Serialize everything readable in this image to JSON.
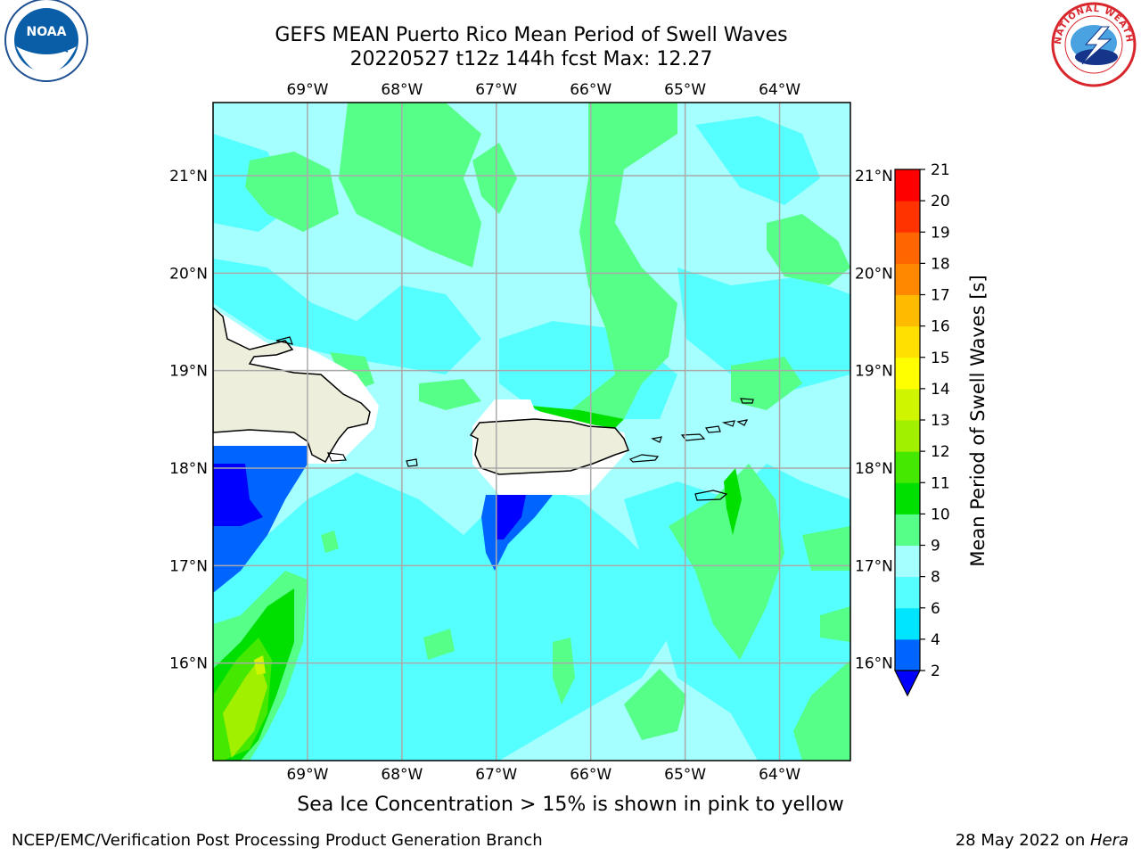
{
  "title_line1": "GEFS MEAN Puerto Rico Mean Period of Swell Waves",
  "title_line2": "20220527 t12z 144h fcst   Max: 12.27",
  "caption": "Sea Ice Concentration > 15% is shown in pink to yellow",
  "footer_left": "NCEP/EMC/Verification Post Processing Product Generation Branch",
  "footer_date": "28 May 2022 on ",
  "footer_machine": "Hera",
  "logos": {
    "left": "NOAA",
    "right": "NATIONAL WEATHER SERVICE"
  },
  "map": {
    "lon_ticks": [
      "69°W",
      "68°W",
      "67°W",
      "66°W",
      "65°W",
      "64°W"
    ],
    "lat_ticks": [
      "21°N",
      "20°N",
      "19°N",
      "18°N",
      "17°N",
      "16°N"
    ],
    "lon_range": [
      -70.0,
      -63.25
    ],
    "lat_range": [
      15.0,
      21.75
    ],
    "ocean_color": "#a6ffff",
    "land_color": "#eeeedd"
  },
  "colorbar": {
    "label": "Mean Period of Swell Waves [s]",
    "levels": [
      2,
      4,
      6,
      8,
      9,
      10,
      11,
      12,
      13,
      14,
      15,
      16,
      17,
      18,
      19,
      20,
      21
    ],
    "tick_labels": [
      "2",
      "4",
      "6",
      "8",
      "9",
      "10",
      "11",
      "12",
      "13",
      "14",
      "15",
      "16",
      "17",
      "18",
      "19",
      "20",
      "21"
    ],
    "colors": [
      "#0064ff",
      "#00e5ff",
      "#55ffff",
      "#a6ffff",
      "#55ff88",
      "#00e000",
      "#44e800",
      "#a0f000",
      "#d0f500",
      "#ffff00",
      "#ffe000",
      "#ffbb00",
      "#ff8800",
      "#ff6600",
      "#ff3300",
      "#ff0000"
    ],
    "under_color": "#0000ff"
  }
}
